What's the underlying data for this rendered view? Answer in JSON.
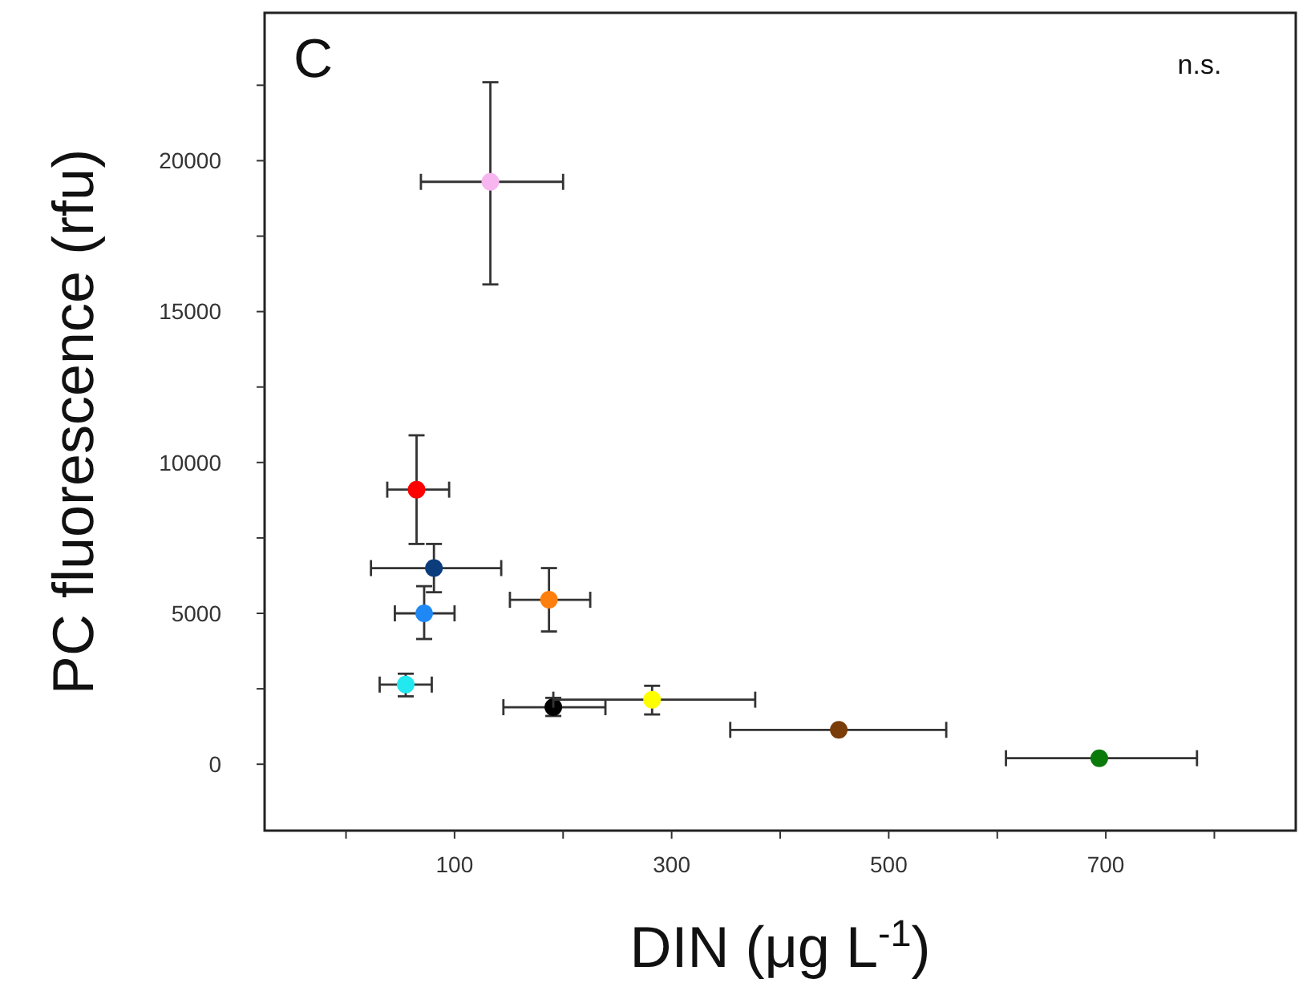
{
  "chart_data": {
    "type": "scatter",
    "xlabel": "DIN (μg L$^{-1}$)",
    "ylabel": "PC fluorescence (rfu)",
    "annotations": [
      "C",
      "n.s."
    ],
    "x": [
      133,
      65,
      81,
      72,
      187,
      55,
      191,
      282,
      454,
      694
    ],
    "values": [
      19300,
      9100,
      6500,
      5000,
      5450,
      2640,
      1890,
      2140,
      1140,
      200
    ],
    "colors": [
      "#f7b6ef",
      "#ff0000",
      "#0b3d7d",
      "#1e88f5",
      "#ff7f0e",
      "#22e8ef",
      "#000000",
      "#ffff00",
      "#7a3d0a",
      "#0a7a0a"
    ],
    "errors": [
      [
        15900,
        22600
      ],
      [
        7300,
        10900
      ],
      [
        5700,
        7300
      ],
      [
        4150,
        5900
      ],
      [
        4400,
        6500
      ],
      [
        2250,
        3000
      ],
      [
        1600,
        2200
      ],
      [
        1650,
        2600
      ],
      null,
      null
    ],
    "xerrors": [
      [
        69,
        200
      ],
      [
        38,
        95
      ],
      [
        23,
        143
      ],
      [
        45,
        100
      ],
      [
        151,
        225
      ],
      [
        31,
        79
      ],
      [
        145,
        239
      ],
      [
        191,
        377
      ],
      [
        354,
        553
      ],
      [
        608,
        784
      ]
    ],
    "xlim": [
      -75,
      875
    ],
    "ylim": [
      -2200,
      24900
    ],
    "xticks": [
      {
        "value": 0,
        "label": null
      },
      100,
      {
        "value": 200,
        "label": null
      },
      300,
      {
        "value": 400,
        "label": null
      },
      500,
      {
        "value": 600,
        "label": null
      },
      700,
      {
        "value": 800,
        "label": null
      }
    ],
    "yticks": [
      0,
      {
        "value": 2500,
        "label": null
      },
      5000,
      {
        "value": 7500,
        "label": null
      },
      10000,
      {
        "value": 12500,
        "label": null
      },
      15000,
      {
        "value": 17500,
        "label": null
      },
      20000,
      {
        "value": 22500,
        "label": null
      }
    ],
    "marker": "circle",
    "grid": false
  }
}
